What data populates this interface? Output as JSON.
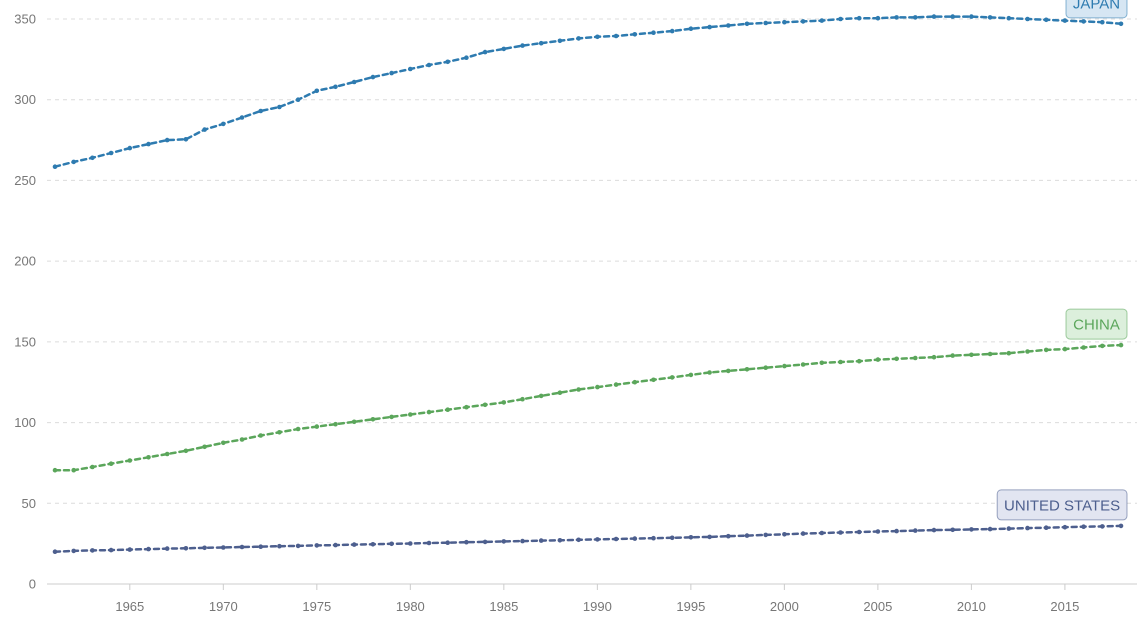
{
  "chart_data": {
    "type": "line",
    "title": "",
    "xlabel": "",
    "ylabel": "",
    "xlim": [
      1961,
      2018
    ],
    "ylim": [
      0,
      350
    ],
    "x_ticks": [
      "1965",
      "1970",
      "1975",
      "1980",
      "1985",
      "1990",
      "1995",
      "2000",
      "2005",
      "2010",
      "2015"
    ],
    "y_ticks": [
      "0",
      "50",
      "100",
      "150",
      "200",
      "250",
      "300",
      "350"
    ],
    "grid": true,
    "x": [
      1961,
      1962,
      1963,
      1964,
      1965,
      1966,
      1967,
      1968,
      1969,
      1970,
      1971,
      1972,
      1973,
      1974,
      1975,
      1976,
      1977,
      1978,
      1979,
      1980,
      1981,
      1982,
      1983,
      1984,
      1985,
      1986,
      1987,
      1988,
      1989,
      1990,
      1991,
      1992,
      1993,
      1994,
      1995,
      1996,
      1997,
      1998,
      1999,
      2000,
      2001,
      2002,
      2003,
      2004,
      2005,
      2006,
      2007,
      2008,
      2009,
      2010,
      2011,
      2012,
      2013,
      2014,
      2015,
      2016,
      2017,
      2018
    ],
    "series": [
      {
        "name": "JAPAN",
        "color": "#2e7bb0",
        "label_bg": "#d6e6f3",
        "values": [
          258.5,
          261.5,
          264,
          267,
          270,
          272.5,
          275,
          275.5,
          281.5,
          285,
          289,
          293,
          295.5,
          300,
          305.5,
          308,
          311,
          314,
          316.5,
          319,
          321.5,
          323.5,
          326,
          329.5,
          331.5,
          333.5,
          335,
          336.5,
          338,
          339,
          339.5,
          340.5,
          341.5,
          342.5,
          344,
          345,
          346,
          347,
          347.5,
          348,
          348.5,
          349,
          350,
          350.5,
          350.5,
          351,
          351,
          351.5,
          351.5,
          351.5,
          351,
          350.5,
          350,
          349.5,
          349,
          348.5,
          348,
          347
        ]
      },
      {
        "name": "CHINA",
        "color": "#5ba65b",
        "label_bg": "#dcefdc",
        "values": [
          70.5,
          70.5,
          72.5,
          74.5,
          76.5,
          78.5,
          80.5,
          82.5,
          85,
          87.5,
          89.5,
          92,
          94,
          96,
          97.5,
          99,
          100.5,
          102,
          103.5,
          105,
          106.5,
          108,
          109.5,
          111,
          112.5,
          114.5,
          116.5,
          118.5,
          120.5,
          122,
          123.5,
          125,
          126.5,
          128,
          129.5,
          131,
          132,
          133,
          134,
          135,
          136,
          137,
          137.5,
          138,
          139,
          139.5,
          140,
          140.5,
          141.5,
          142,
          142.5,
          143,
          144,
          145,
          145.5,
          146.5,
          147.5,
          148
        ]
      },
      {
        "name": "UNITED STATES",
        "color": "#4d5f8e",
        "label_bg": "#e2e5f1",
        "values": [
          20,
          20.5,
          20.8,
          21,
          21.3,
          21.6,
          21.9,
          22.1,
          22.4,
          22.6,
          22.9,
          23.1,
          23.4,
          23.6,
          23.9,
          24.1,
          24.4,
          24.6,
          24.9,
          25.1,
          25.4,
          25.6,
          25.9,
          26.1,
          26.4,
          26.6,
          26.9,
          27.1,
          27.4,
          27.6,
          27.9,
          28.1,
          28.4,
          28.6,
          28.9,
          29.2,
          29.6,
          30,
          30.4,
          30.8,
          31.2,
          31.6,
          31.9,
          32.2,
          32.5,
          32.8,
          33.1,
          33.4,
          33.6,
          33.8,
          34,
          34.3,
          34.6,
          34.9,
          35.2,
          35.5,
          35.7,
          36
        ]
      }
    ]
  }
}
